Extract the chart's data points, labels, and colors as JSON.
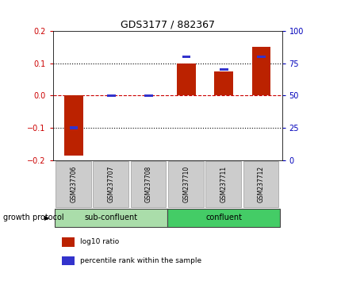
{
  "title": "GDS3177 / 882367",
  "samples": [
    "GSM237706",
    "GSM237707",
    "GSM237708",
    "GSM237710",
    "GSM237711",
    "GSM237712"
  ],
  "log10_ratio": [
    -0.185,
    0.0,
    0.0,
    0.1,
    0.075,
    0.15
  ],
  "percentile_rank": [
    25,
    50,
    50,
    80,
    70,
    80
  ],
  "ylim_left": [
    -0.2,
    0.2
  ],
  "ylim_right": [
    0,
    100
  ],
  "yticks_left": [
    -0.2,
    -0.1,
    0.0,
    0.1,
    0.2
  ],
  "yticks_right": [
    0,
    25,
    50,
    75,
    100
  ],
  "bar_color_red": "#bb2200",
  "bar_color_blue": "#3333cc",
  "hline_zero_color": "#cc0000",
  "dotted_line_color": "black",
  "groups": [
    {
      "label": "sub-confluent",
      "start": 0,
      "end": 3,
      "color": "#aaddaa"
    },
    {
      "label": "confluent",
      "start": 3,
      "end": 6,
      "color": "#44cc66"
    }
  ],
  "group_label": "growth protocol",
  "legend_items": [
    {
      "label": "log10 ratio",
      "color": "#bb2200"
    },
    {
      "label": "percentile rank within the sample",
      "color": "#3333cc"
    }
  ],
  "bar_width": 0.5,
  "sample_bg": "#cccccc",
  "title_color": "black",
  "left_tick_color": "#cc0000",
  "right_tick_color": "#0000bb"
}
